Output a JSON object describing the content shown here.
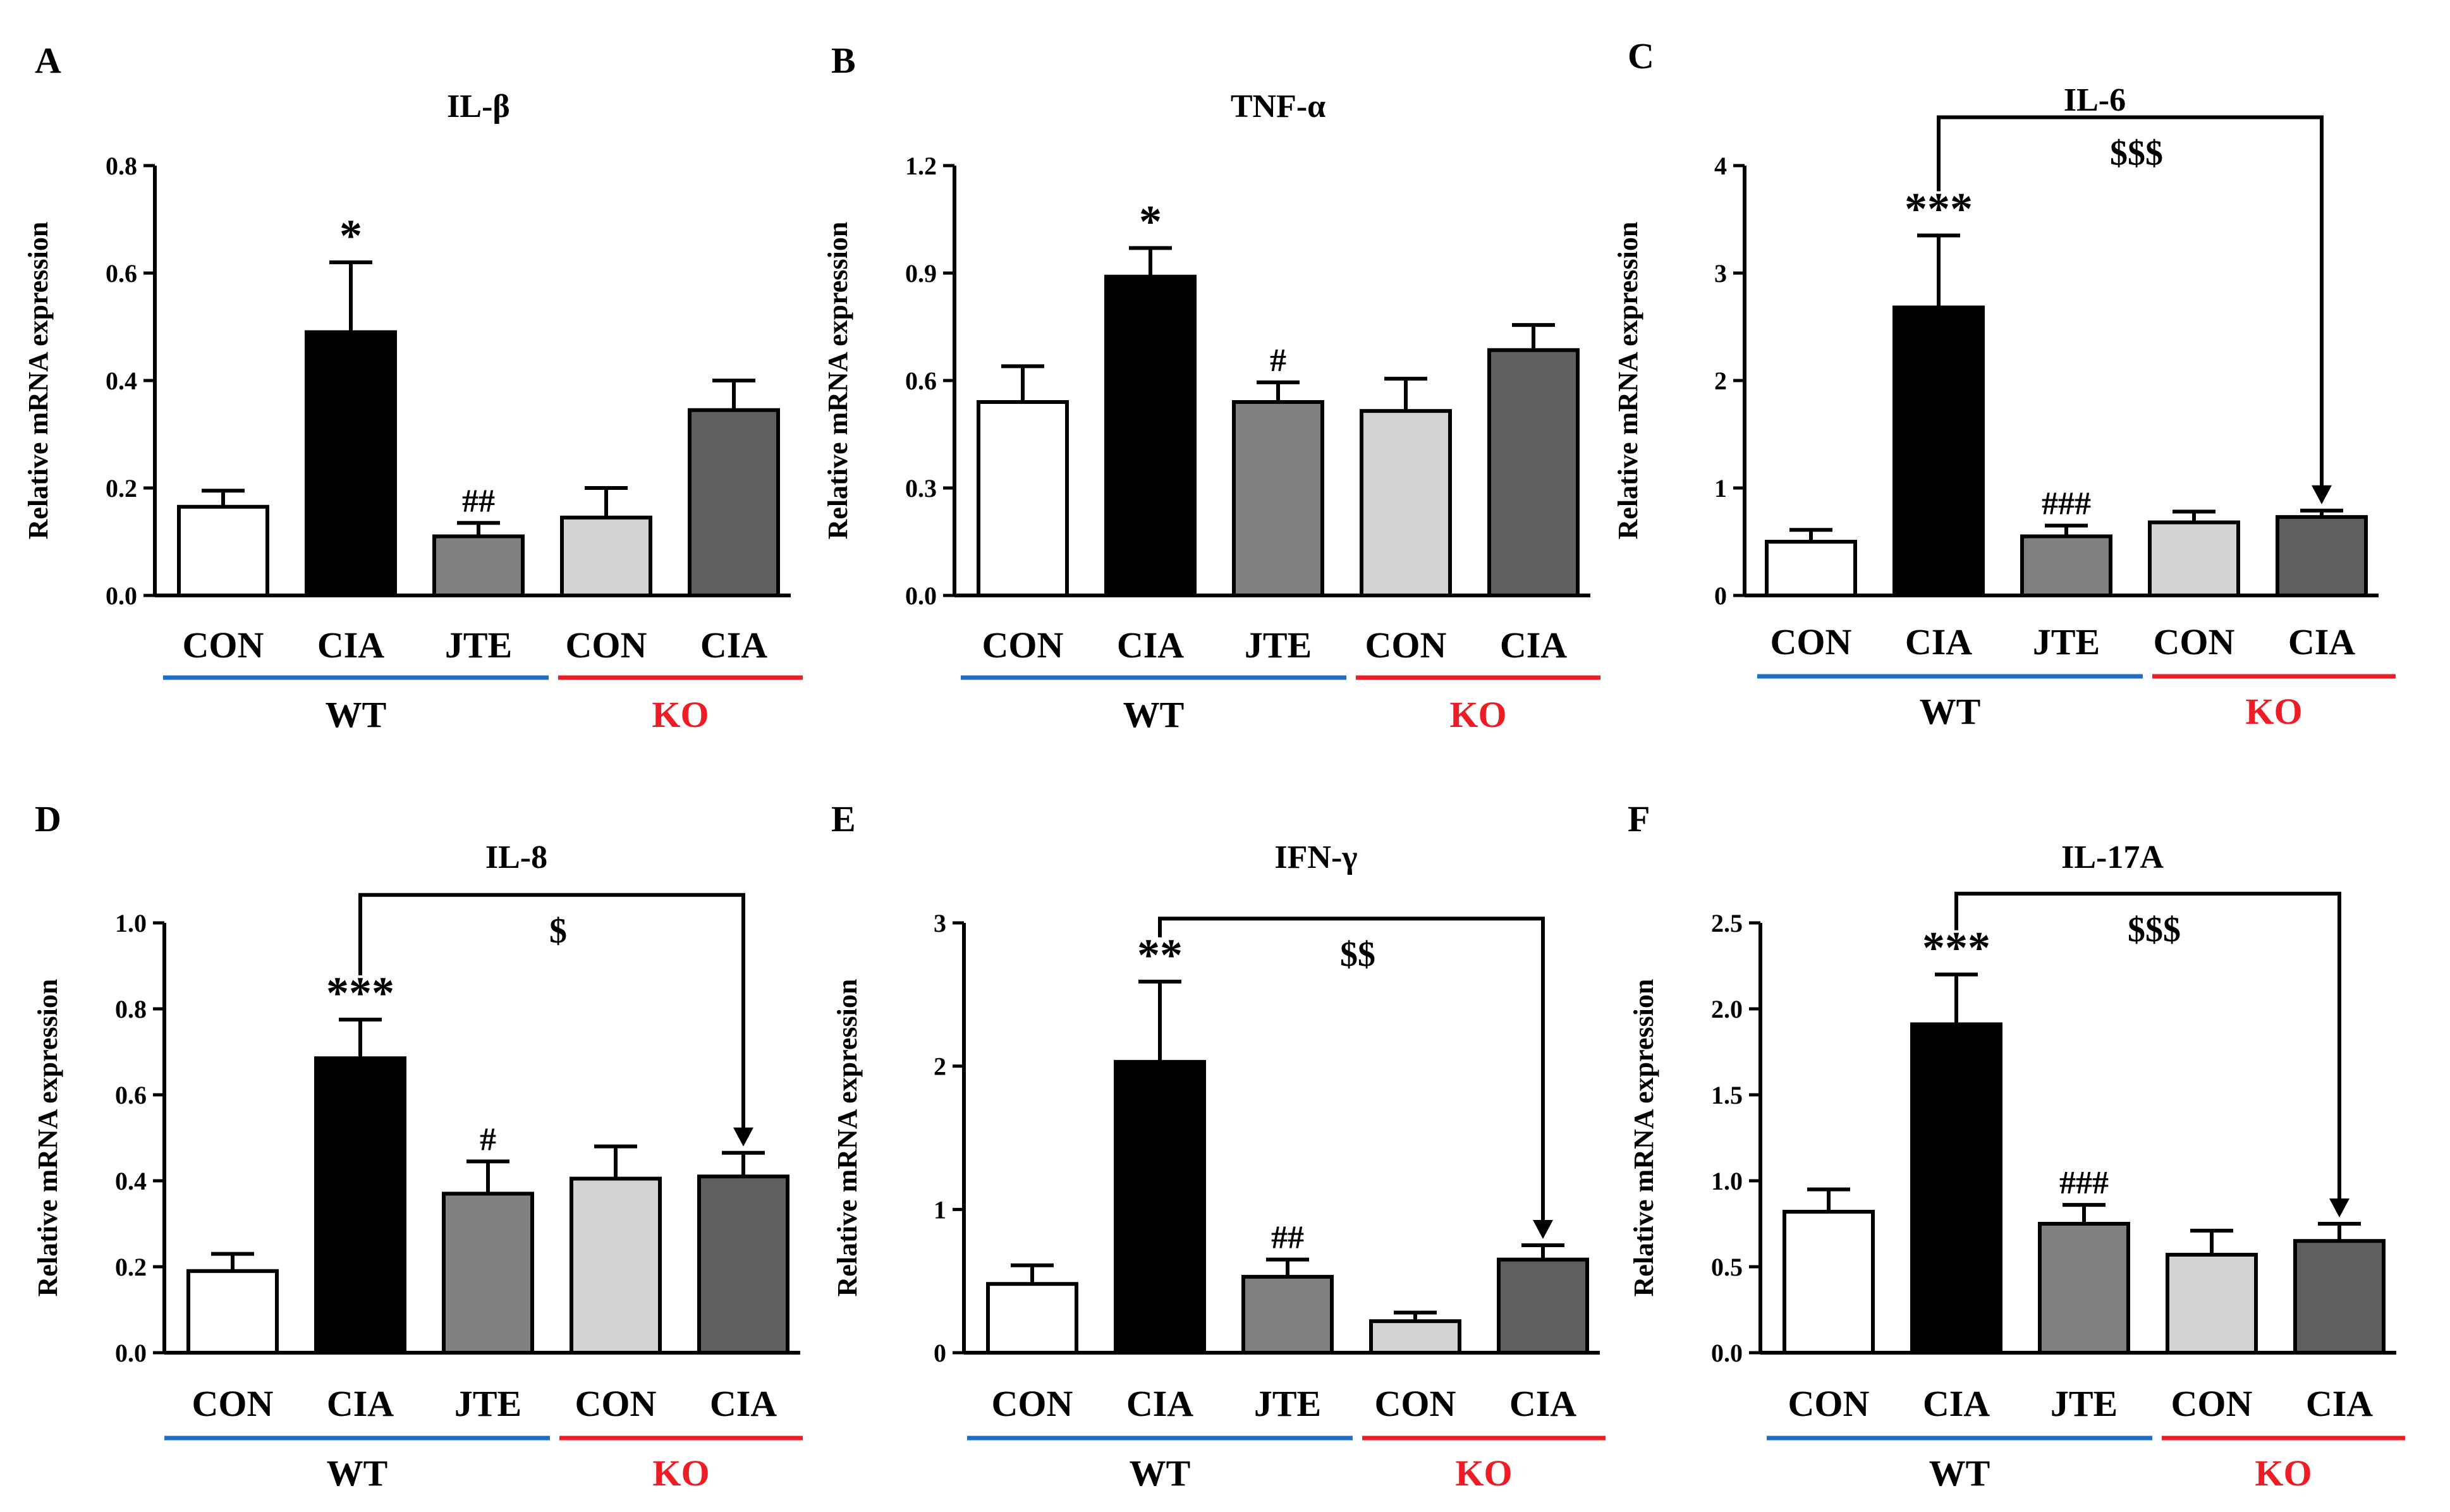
{
  "figure": {
    "groups": [
      {
        "label": "WT",
        "color": "#000000",
        "underline_color": "#1f6fc6"
      },
      {
        "label": "KO",
        "color": "#ee1c25",
        "underline_color": "#ee1c25"
      }
    ]
  },
  "chart_data": [
    {
      "type": "bar",
      "panel_label": "A",
      "title": "IL-β",
      "ylabel": "Relative mRNA expression",
      "xlabel": "",
      "ylim": [
        0,
        0.8
      ],
      "yticks": [
        "0.0",
        "0.2",
        "0.4",
        "0.6",
        "0.8"
      ],
      "categories": [
        "CON",
        "CIA",
        "JTE",
        "CON",
        "CIA"
      ],
      "category_groups": [
        "WT",
        "WT",
        "WT",
        "KO",
        "KO"
      ],
      "values": [
        0.165,
        0.49,
        0.11,
        0.145,
        0.345
      ],
      "errors": [
        0.03,
        0.13,
        0.025,
        0.055,
        0.055
      ],
      "bar_colors": [
        "#ffffff",
        "#000000",
        "#808080",
        "#d3d3d3",
        "#5f5f5f"
      ],
      "annotations": [
        "",
        "*",
        "##",
        "",
        ""
      ],
      "bracket": null
    },
    {
      "type": "bar",
      "panel_label": "B",
      "title": "TNF-α",
      "ylabel": "Relative mRNA expression",
      "xlabel": "",
      "ylim": [
        0,
        1.2
      ],
      "yticks": [
        "0.0",
        "0.3",
        "0.6",
        "0.9",
        "1.2"
      ],
      "categories": [
        "CON",
        "CIA",
        "JTE",
        "CON",
        "CIA"
      ],
      "category_groups": [
        "WT",
        "WT",
        "WT",
        "KO",
        "KO"
      ],
      "values": [
        0.54,
        0.89,
        0.54,
        0.515,
        0.685
      ],
      "errors": [
        0.1,
        0.08,
        0.055,
        0.09,
        0.07
      ],
      "bar_colors": [
        "#ffffff",
        "#000000",
        "#808080",
        "#d3d3d3",
        "#5f5f5f"
      ],
      "annotations": [
        "",
        "*",
        "#",
        "",
        ""
      ],
      "bracket": null
    },
    {
      "type": "bar",
      "panel_label": "C",
      "title": "IL-6",
      "ylabel": "Relative mRNA expression",
      "xlabel": "",
      "ylim": [
        0,
        4
      ],
      "yticks": [
        "0",
        "1",
        "2",
        "3",
        "4"
      ],
      "categories": [
        "CON",
        "CIA",
        "JTE",
        "CON",
        "CIA"
      ],
      "category_groups": [
        "WT",
        "WT",
        "WT",
        "KO",
        "KO"
      ],
      "values": [
        0.5,
        2.68,
        0.55,
        0.68,
        0.73
      ],
      "errors": [
        0.11,
        0.67,
        0.1,
        0.1,
        0.06
      ],
      "bar_colors": [
        "#ffffff",
        "#000000",
        "#808080",
        "#d3d3d3",
        "#5f5f5f"
      ],
      "annotations": [
        "",
        "***",
        "###",
        "",
        ""
      ],
      "bracket": {
        "from": 1,
        "to": 4,
        "level": 4.45,
        "label": "$$$"
      }
    },
    {
      "type": "bar",
      "panel_label": "D",
      "title": "IL-8",
      "ylabel": "Relative mRNA expression",
      "xlabel": "",
      "ylim": [
        0,
        1.0
      ],
      "yticks": [
        "0.0",
        "0.2",
        "0.4",
        "0.6",
        "0.8",
        "1.0"
      ],
      "categories": [
        "CON",
        "CIA",
        "JTE",
        "CON",
        "CIA"
      ],
      "category_groups": [
        "WT",
        "WT",
        "WT",
        "KO",
        "KO"
      ],
      "values": [
        0.19,
        0.685,
        0.37,
        0.405,
        0.41
      ],
      "errors": [
        0.04,
        0.09,
        0.075,
        0.075,
        0.055
      ],
      "bar_colors": [
        "#ffffff",
        "#000000",
        "#808080",
        "#d3d3d3",
        "#5f5f5f"
      ],
      "annotations": [
        "",
        "***",
        "#",
        "",
        ""
      ],
      "bracket": {
        "from": 1,
        "to": 4,
        "level": 1.065,
        "label": "$"
      }
    },
    {
      "type": "bar",
      "panel_label": "E",
      "title": "IFN-γ",
      "ylabel": "Relative mRNA expression",
      "xlabel": "",
      "ylim": [
        0,
        3
      ],
      "yticks": [
        "0",
        "1",
        "2",
        "3"
      ],
      "categories": [
        "CON",
        "CIA",
        "JTE",
        "CON",
        "CIA"
      ],
      "category_groups": [
        "WT",
        "WT",
        "WT",
        "KO",
        "KO"
      ],
      "values": [
        0.48,
        2.03,
        0.53,
        0.22,
        0.65
      ],
      "errors": [
        0.13,
        0.56,
        0.12,
        0.06,
        0.1
      ],
      "bar_colors": [
        "#ffffff",
        "#000000",
        "#808080",
        "#d3d3d3",
        "#5f5f5f"
      ],
      "annotations": [
        "",
        "**",
        "##",
        "",
        ""
      ],
      "bracket": {
        "from": 1,
        "to": 4,
        "level": 3.03,
        "label": "$$"
      }
    },
    {
      "type": "bar",
      "panel_label": "F",
      "title": "IL-17A",
      "ylabel": "Relative mRNA expression",
      "xlabel": "",
      "ylim": [
        0,
        2.5
      ],
      "yticks": [
        "0.0",
        "0.5",
        "1.0",
        "1.5",
        "2.0",
        "2.5"
      ],
      "categories": [
        "CON",
        "CIA",
        "JTE",
        "CON",
        "CIA"
      ],
      "category_groups": [
        "WT",
        "WT",
        "WT",
        "KO",
        "KO"
      ],
      "values": [
        0.82,
        1.91,
        0.75,
        0.57,
        0.65
      ],
      "errors": [
        0.13,
        0.29,
        0.11,
        0.14,
        0.1
      ],
      "bar_colors": [
        "#ffffff",
        "#000000",
        "#808080",
        "#d3d3d3",
        "#5f5f5f"
      ],
      "annotations": [
        "",
        "***",
        "###",
        "",
        ""
      ],
      "bracket": {
        "from": 1,
        "to": 4,
        "level": 2.67,
        "label": "$$$"
      }
    }
  ]
}
